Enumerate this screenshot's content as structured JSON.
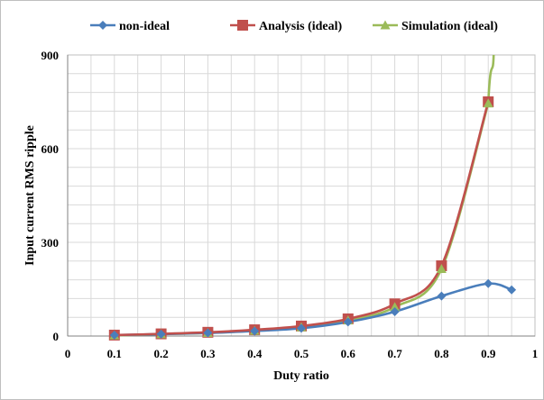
{
  "chart_data": {
    "type": "line",
    "xlabel": "Duty ratio",
    "ylabel": "Input current  RMS ripple",
    "xlim": [
      0,
      1
    ],
    "ylim": [
      0,
      900
    ],
    "x_ticks": [
      "0",
      "0.1",
      "0.2",
      "0.3",
      "0.4",
      "0.5",
      "0.6",
      "0.7",
      "0.8",
      "0.9",
      "1"
    ],
    "y_ticks": [
      "0",
      "300",
      "600",
      "900"
    ],
    "grid": true,
    "legend_position": "top",
    "series": [
      {
        "name": "non-ideal",
        "color": "#4a7ebb",
        "marker": "diamond",
        "x": [
          0.1,
          0.2,
          0.3,
          0.4,
          0.5,
          0.6,
          0.7,
          0.8,
          0.9,
          0.95
        ],
        "y": [
          3,
          6,
          10,
          16,
          25,
          45,
          78,
          128,
          168,
          148
        ]
      },
      {
        "name": "Analysis (ideal)",
        "color": "#c0504d",
        "marker": "square",
        "x": [
          0.1,
          0.2,
          0.3,
          0.4,
          0.5,
          0.6,
          0.7,
          0.8,
          0.9
        ],
        "y": [
          3,
          7,
          12,
          20,
          32,
          55,
          103,
          225,
          750
        ]
      },
      {
        "name": "Simulation (ideal)",
        "color": "#9bbb59",
        "marker": "triangle",
        "x": [
          0.1,
          0.2,
          0.3,
          0.4,
          0.5,
          0.6,
          0.7,
          0.8,
          0.9
        ],
        "y": [
          2,
          6,
          10,
          17,
          28,
          50,
          93,
          215,
          745
        ],
        "continues_above_axis": true
      }
    ]
  }
}
